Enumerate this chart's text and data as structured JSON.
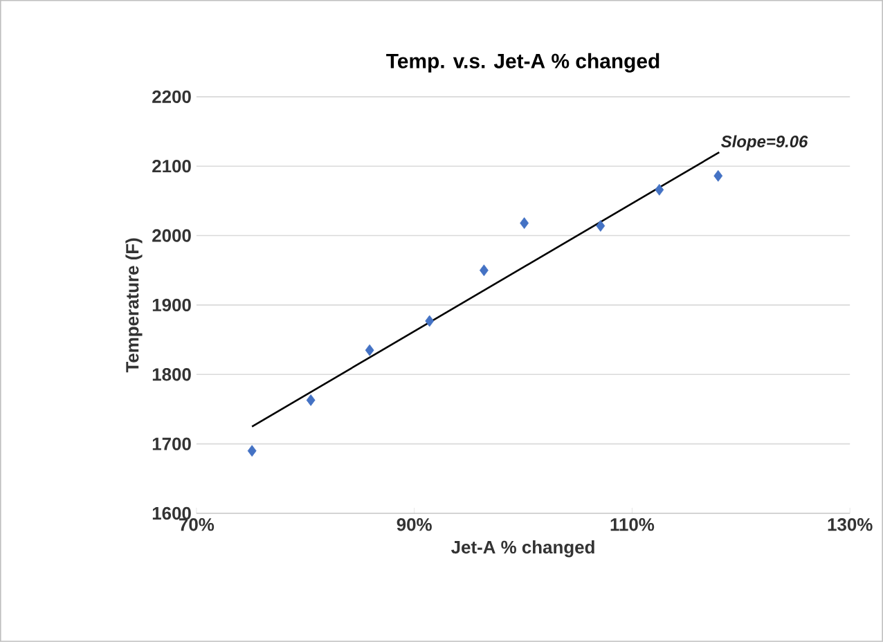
{
  "chart_data": {
    "type": "scatter",
    "title": "Temp. v.s. Jet-A % changed",
    "xlabel": "Jet-A % changed",
    "ylabel": "Temperature (F)",
    "xlim": [
      70,
      130
    ],
    "xticks": [
      {
        "value": 70,
        "label": "70%"
      },
      {
        "value": 90,
        "label": "90%"
      },
      {
        "value": 110,
        "label": "110%"
      },
      {
        "value": 130,
        "label": "130%"
      }
    ],
    "ylim": [
      1600,
      2200
    ],
    "yticks": [
      1600,
      1700,
      1800,
      1900,
      2000,
      2100,
      2200
    ],
    "grid": "y",
    "series": [
      {
        "marker": "diamond",
        "color": "#4472c4",
        "x": [
          75.1,
          80.5,
          85.9,
          91.4,
          96.4,
          100.1,
          107.1,
          112.5,
          117.9
        ],
        "values": [
          1690,
          1763,
          1835,
          1877,
          1950,
          2018,
          2014,
          2066,
          2086
        ]
      },
      {
        "type": "line",
        "marker": "none",
        "color": "#000000",
        "x": [
          75.1,
          118
        ],
        "values": [
          1725,
          2120
        ]
      }
    ],
    "annotations": [
      {
        "text": "Slope=9.06",
        "x": 118,
        "y": 2120
      }
    ]
  }
}
